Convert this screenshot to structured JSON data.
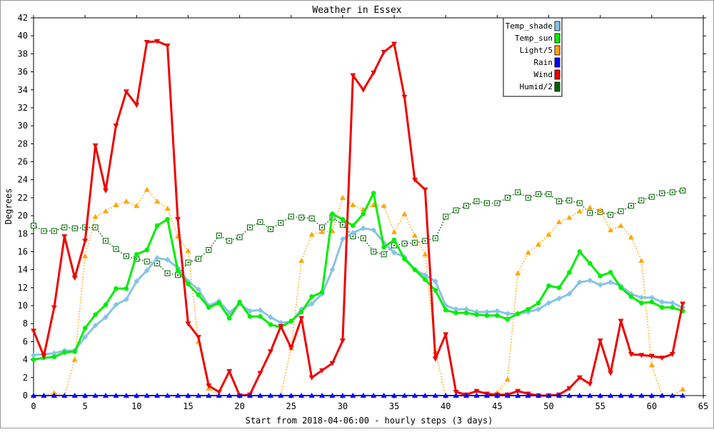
{
  "chart_data": {
    "type": "line",
    "title": "Weather in Essex",
    "xlabel": "Start from 2018-04-06:00 - hourly steps (3 days)",
    "ylabel": "Degrees",
    "xlim": [
      0,
      65
    ],
    "ylim": [
      0,
      42
    ],
    "x_ticks": [
      0,
      5,
      10,
      15,
      20,
      25,
      30,
      35,
      40,
      45,
      50,
      55,
      60,
      65
    ],
    "y_ticks": [
      0,
      2,
      4,
      6,
      8,
      10,
      12,
      14,
      16,
      18,
      20,
      22,
      24,
      26,
      28,
      30,
      32,
      34,
      36,
      38,
      40,
      42
    ],
    "grid": false,
    "legend_position": "top-right",
    "x": [
      0,
      1,
      2,
      3,
      4,
      5,
      6,
      7,
      8,
      9,
      10,
      11,
      12,
      13,
      14,
      15,
      16,
      17,
      18,
      19,
      20,
      21,
      22,
      23,
      24,
      25,
      26,
      27,
      28,
      29,
      30,
      31,
      32,
      33,
      34,
      35,
      36,
      37,
      38,
      39,
      40,
      41,
      42,
      43,
      44,
      45,
      46,
      47,
      48,
      49,
      50,
      51,
      52,
      53,
      54,
      55,
      56,
      57,
      58,
      59,
      60,
      61,
      62,
      63
    ],
    "series": [
      {
        "name": "Temp_shade",
        "color": "#87c4e6",
        "style": "solid-thick",
        "marker": "diamond",
        "values": [
          4.5,
          4.6,
          4.7,
          5.0,
          5.0,
          6.5,
          7.8,
          8.7,
          10.1,
          10.7,
          12.7,
          13.9,
          15.3,
          15.1,
          14.2,
          12.7,
          11.8,
          10.0,
          10.5,
          9.2,
          10.2,
          9.4,
          9.5,
          8.7,
          8.1,
          8.2,
          9.6,
          10.2,
          11.3,
          14.0,
          17.4,
          18.1,
          18.6,
          18.4,
          17.0,
          15.9,
          15.4,
          14.0,
          13.4,
          12.7,
          10.0,
          9.6,
          9.6,
          9.3,
          9.3,
          9.4,
          9.1,
          9.1,
          9.3,
          9.6,
          10.3,
          10.8,
          11.3,
          12.6,
          12.8,
          12.3,
          12.6,
          12.2,
          11.3,
          10.9,
          10.9,
          10.4,
          10.3,
          9.8
        ]
      },
      {
        "name": "Temp_sun",
        "color": "#00ee00",
        "style": "solid-thick",
        "marker": "circle",
        "values": [
          4.0,
          4.2,
          4.3,
          4.8,
          4.9,
          7.5,
          9.0,
          10.1,
          11.9,
          11.9,
          15.7,
          16.2,
          18.9,
          19.6,
          13.9,
          12.4,
          11.2,
          9.8,
          10.3,
          8.6,
          10.4,
          8.8,
          8.8,
          7.9,
          7.6,
          8.3,
          9.3,
          11.0,
          11.5,
          20.2,
          19.6,
          18.9,
          20.2,
          22.5,
          16.5,
          17.3,
          15.2,
          14.0,
          12.9,
          11.7,
          9.5,
          9.2,
          9.2,
          9.0,
          8.9,
          8.9,
          8.5,
          9.1,
          9.6,
          10.3,
          12.2,
          12.0,
          13.7,
          16.0,
          14.7,
          13.3,
          13.7,
          12.0,
          11.0,
          10.3,
          10.4,
          9.8,
          9.8,
          9.4
        ]
      },
      {
        "name": "Light/5",
        "color": "#ffa500",
        "style": "dotted",
        "marker": "triangle",
        "values": [
          0.0,
          0.0,
          0.3,
          0.0,
          4.0,
          15.5,
          19.9,
          20.5,
          21.2,
          21.6,
          21.1,
          22.9,
          21.6,
          20.8,
          17.7,
          16.1,
          6.0,
          0.8,
          0.0,
          0.0,
          0.0,
          0.0,
          0.0,
          0.0,
          0.0,
          5.3,
          15.0,
          17.9,
          18.2,
          18.3,
          22.0,
          21.2,
          20.7,
          21.2,
          21.1,
          18.2,
          20.2,
          17.8,
          15.7,
          4.9,
          0.0,
          0.0,
          0.0,
          0.0,
          0.0,
          0.3,
          1.8,
          13.6,
          15.9,
          16.8,
          17.9,
          19.3,
          19.8,
          20.5,
          20.9,
          20.6,
          18.4,
          18.9,
          17.6,
          15.0,
          3.4,
          0.0,
          0.0,
          0.7
        ]
      },
      {
        "name": "Rain",
        "color": "#0000ff",
        "style": "solid",
        "marker": "triangle",
        "values": [
          0,
          0,
          0,
          0,
          0,
          0,
          0,
          0,
          0,
          0,
          0,
          0,
          0,
          0,
          0,
          0,
          0,
          0,
          0,
          0,
          0,
          0,
          0,
          0,
          0,
          0,
          0,
          0,
          0,
          0,
          0,
          0,
          0,
          0,
          0,
          0,
          0,
          0,
          0,
          0,
          0,
          0,
          0,
          0,
          0,
          0,
          0,
          0,
          0,
          0,
          0,
          0,
          0,
          0,
          0,
          0,
          0,
          0,
          0,
          0,
          0,
          0,
          0,
          0
        ]
      },
      {
        "name": "Wind",
        "color": "#ee0000",
        "style": "solid-thick",
        "marker": "triangle-down",
        "values": [
          7.2,
          4.4,
          9.8,
          17.7,
          13.1,
          17.2,
          27.8,
          22.8,
          30.0,
          33.8,
          32.3,
          39.3,
          39.4,
          38.9,
          19.6,
          8.0,
          6.5,
          1.1,
          0.4,
          2.7,
          0.0,
          0.1,
          2.5,
          4.9,
          7.7,
          5.3,
          8.6,
          2.0,
          2.8,
          3.6,
          6.1,
          35.6,
          34.0,
          35.9,
          38.2,
          39.1,
          33.2,
          24.0,
          22.9,
          4.1,
          6.8,
          0.4,
          0.1,
          0.5,
          0.2,
          0.1,
          0.1,
          0.5,
          0.2,
          0.0,
          0.0,
          0.1,
          0.8,
          2.0,
          1.3,
          6.1,
          2.5,
          8.3,
          4.6,
          4.5,
          4.4,
          4.2,
          4.6,
          10.2
        ]
      },
      {
        "name": "Humid/2",
        "color": "#006400",
        "style": "dotted",
        "marker": "square",
        "values": [
          18.9,
          18.3,
          18.3,
          18.7,
          18.6,
          18.7,
          18.7,
          17.2,
          16.3,
          15.5,
          15.2,
          14.9,
          14.7,
          13.6,
          13.4,
          14.8,
          15.2,
          16.2,
          17.8,
          17.2,
          17.6,
          18.7,
          19.3,
          18.5,
          19.2,
          19.9,
          19.8,
          19.7,
          18.7,
          19.8,
          19.0,
          17.7,
          17.5,
          16.0,
          15.7,
          16.7,
          16.9,
          17.0,
          17.2,
          17.5,
          19.9,
          20.6,
          21.1,
          21.6,
          21.4,
          21.4,
          22.0,
          22.6,
          22.0,
          22.4,
          22.4,
          21.6,
          21.7,
          21.4,
          20.3,
          20.4,
          20.1,
          20.5,
          21.1,
          21.7,
          22.1,
          22.5,
          22.6,
          22.8
        ]
      }
    ]
  }
}
